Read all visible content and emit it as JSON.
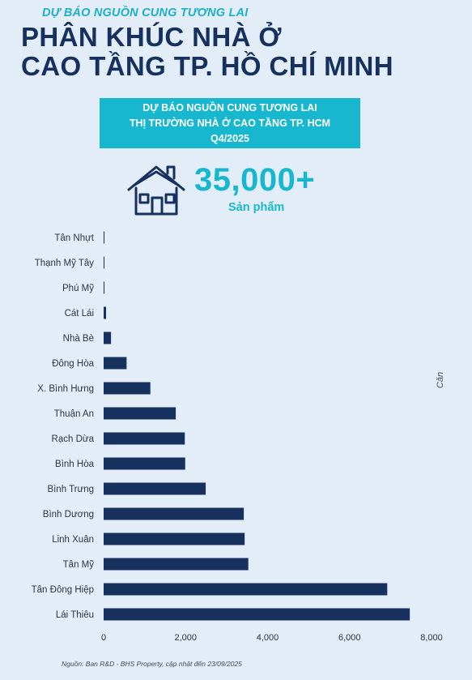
{
  "header": {
    "subtitle": "DỰ BÁO NGUỒN CUNG TƯƠNG LAI",
    "title_line1": "PHÂN KHÚC NHÀ Ở",
    "title_line2": "CAO TẦNG TP. HỒ CHÍ MINH"
  },
  "banner": {
    "line1": "DỰ BÁO NGUỒN CUNG TƯƠNG LAI",
    "line2": "THỊ TRƯỜNG NHÀ Ở CAO TẦNG TP. HCM",
    "line3": "Q4/2025"
  },
  "highlight": {
    "icon": "house-icon",
    "value": "35,000+",
    "label": "Sản phẩm"
  },
  "chart_data": {
    "type": "bar",
    "orientation": "horizontal",
    "categories": [
      "Tân Nhựt",
      "Thạnh Mỹ Tây",
      "Phú Mỹ",
      "Cát Lái",
      "Nhà Bè",
      "Đông Hòa",
      "X. Bình Hưng",
      "Thuận An",
      "Rạch Dừa",
      "Bình Hòa",
      "Bình Trưng",
      "Bình Dương",
      "Linh Xuân",
      "Tân Mỹ",
      "Tân Đông Hiệp",
      "Lái Thiêu"
    ],
    "values": [
      10,
      12,
      15,
      60,
      180,
      560,
      1140,
      1760,
      1980,
      1990,
      2490,
      3420,
      3440,
      3530,
      6920,
      7470
    ],
    "xlim": [
      0,
      8000
    ],
    "xticks": [
      0,
      2000,
      4000,
      6000,
      8000
    ],
    "xtick_labels": [
      "0",
      "2,000",
      "4,000",
      "6,000",
      "8,000"
    ],
    "unit_label": "Căn",
    "grid": false,
    "bar_color": "#17315f"
  },
  "footer": {
    "source": "Nguồn: Ban R&D - BHS Property, cập nhật đến 23/09/2025"
  },
  "colors": {
    "background": "#e3edf8",
    "navy": "#17315f",
    "cyan": "#17b8cf"
  }
}
